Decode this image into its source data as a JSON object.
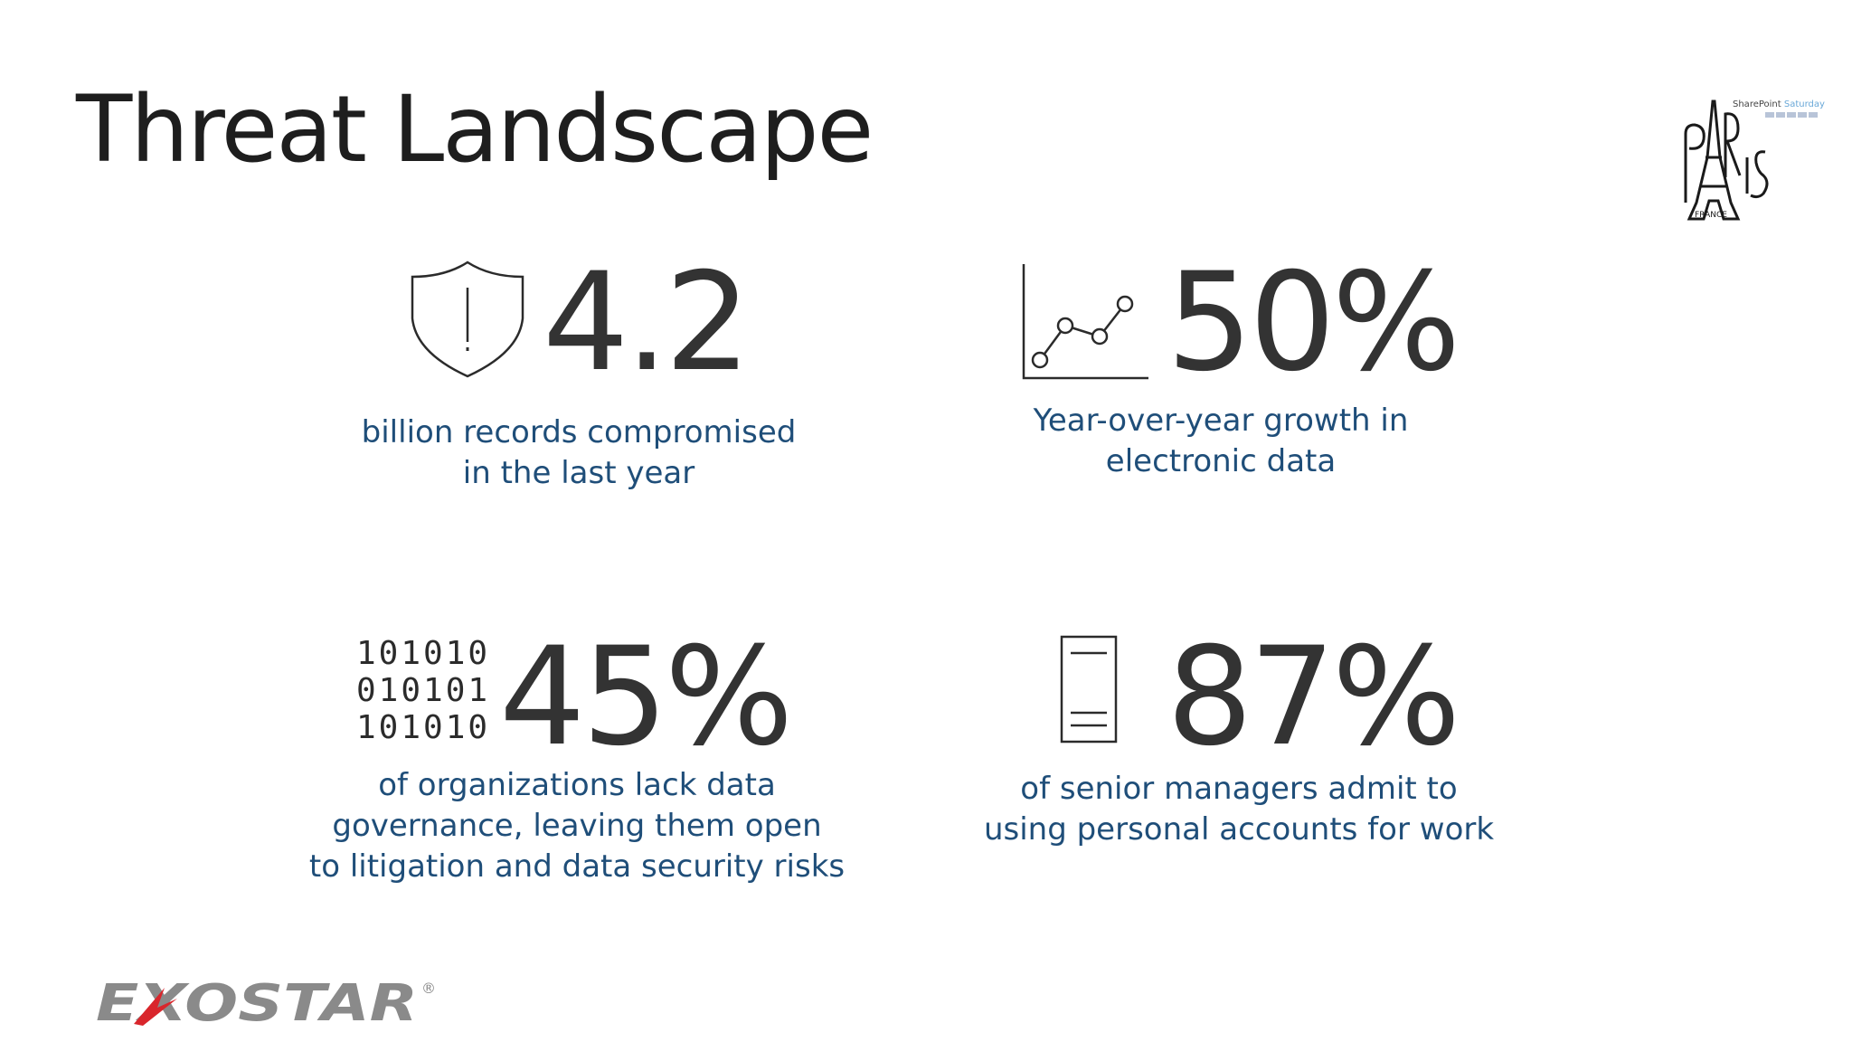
{
  "slide": {
    "title": "Threat Landscape"
  },
  "logos": {
    "event_logo": {
      "header_text": "SharePoint Saturday",
      "main_text": "PARIS",
      "sub_text": "FRANCE"
    },
    "company_logo": {
      "text": "EXOSTAR",
      "registered_mark": "®"
    }
  },
  "stats": [
    {
      "icon": "shield-exclamation-icon",
      "value": "4.2",
      "description": "billion records compromised\nin the last year"
    },
    {
      "icon": "line-chart-icon",
      "value": "50%",
      "description": "Year-over-year growth in\nelectronic data"
    },
    {
      "icon": "binary-code-icon",
      "icon_text": "101010\n010101\n101010",
      "value": "45%",
      "description": "of organizations lack data\ngovernance, leaving them open\nto litigation and data security risks"
    },
    {
      "icon": "mobile-document-icon",
      "value": "87%",
      "description": "of senior managers admit to\nusing personal accounts for work"
    }
  ],
  "colors": {
    "title": "#1e1e1e",
    "value": "#333333",
    "description": "#1f4e79",
    "logo_gray": "#8a8a8a",
    "logo_red": "#d9262c"
  }
}
